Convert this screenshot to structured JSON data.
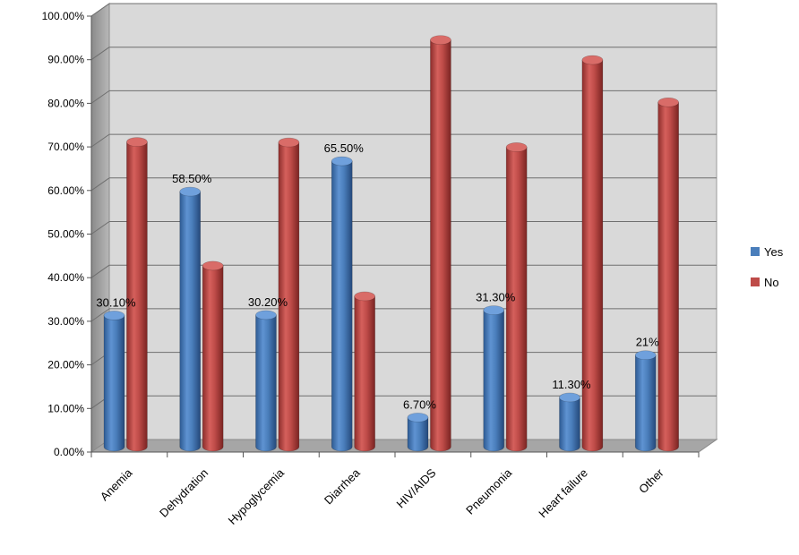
{
  "chart_data": {
    "type": "bar",
    "title": "",
    "xlabel": "",
    "ylabel": "",
    "ylim": [
      0,
      100
    ],
    "yticks": [
      "0.00%",
      "10.00%",
      "20.00%",
      "30.00%",
      "40.00%",
      "50.00%",
      "60.00%",
      "70.00%",
      "80.00%",
      "90.00%",
      "100.00%"
    ],
    "categories": [
      "Anemia",
      "Dehydration",
      "Hypoglycemia",
      "Diarrhea",
      "HIV/AIDS",
      "Pneumonia",
      "Heart failure",
      "Other"
    ],
    "series": [
      {
        "name": "Yes",
        "color": "#4a7ebb",
        "values": [
          30.1,
          58.5,
          30.2,
          65.5,
          6.7,
          31.3,
          11.3,
          21
        ],
        "labels": [
          "30.10%",
          "58.50%",
          "30.20%",
          "65.50%",
          "6.70%",
          "31.30%",
          "11.30%",
          "21%"
        ]
      },
      {
        "name": "No",
        "color": "#be4b48",
        "values": [
          69.9,
          41.5,
          69.8,
          34.5,
          93.3,
          68.7,
          88.7,
          79
        ]
      }
    ],
    "grid": true,
    "legend": "right",
    "style": "3d-cylinder"
  }
}
